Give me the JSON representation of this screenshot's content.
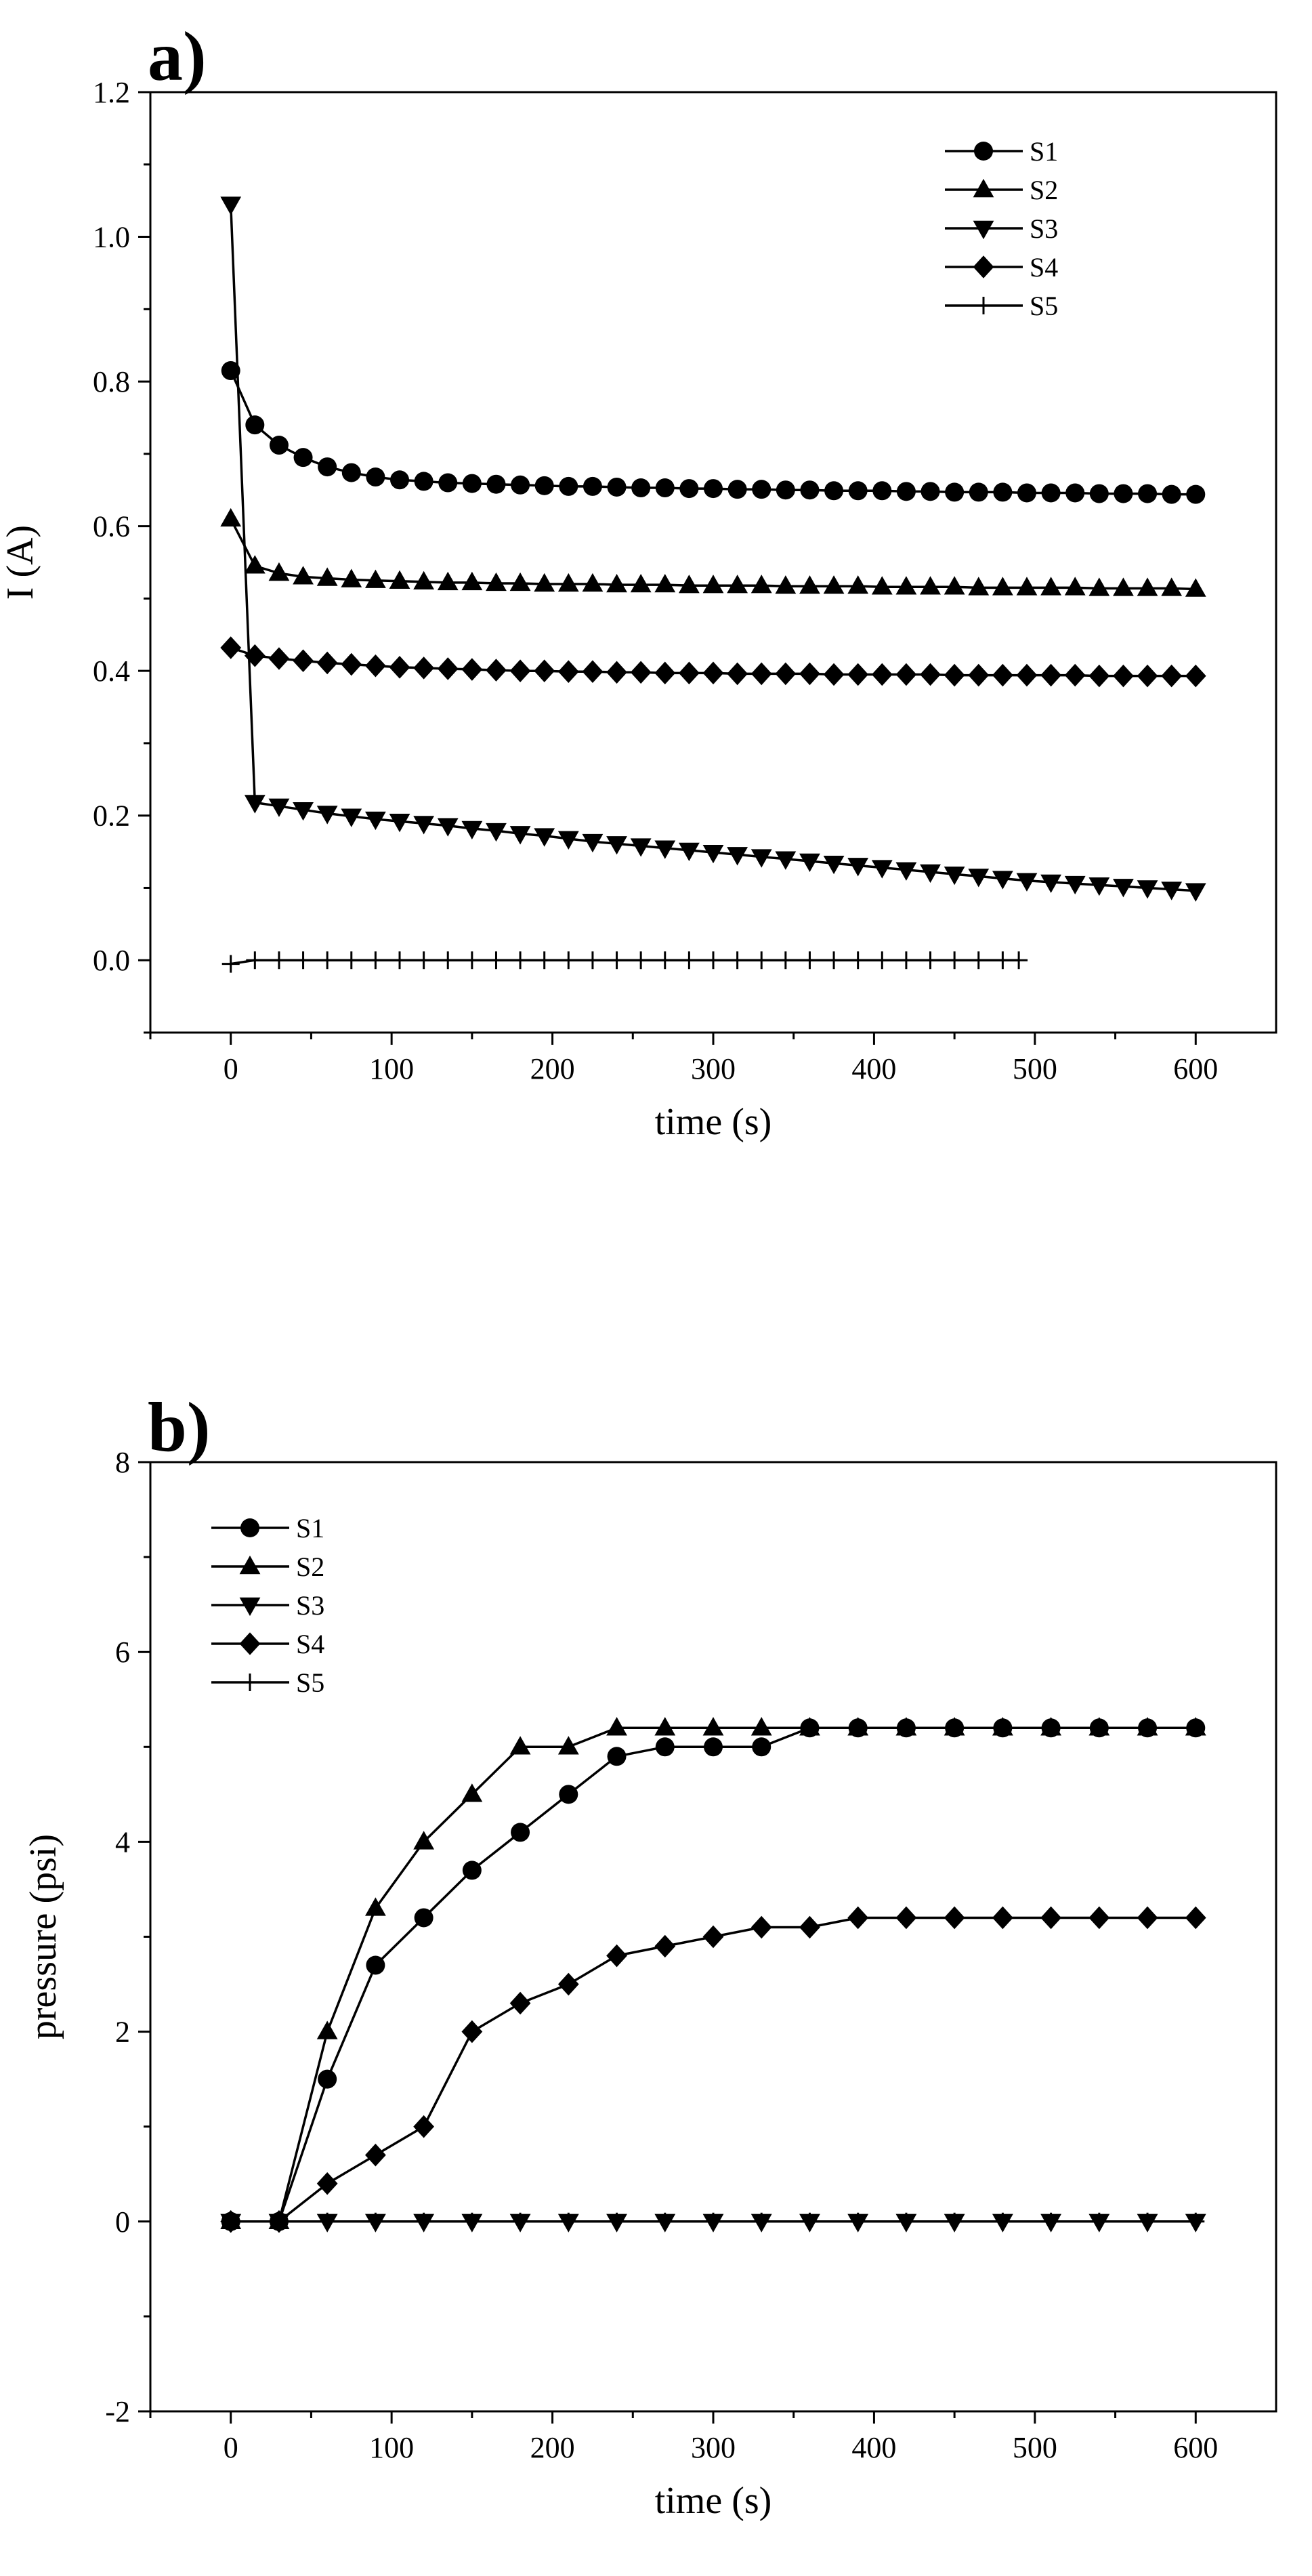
{
  "chart_data": [
    {
      "panel": "a)",
      "type": "line",
      "xlabel": "time (s)",
      "ylabel": "I (A)",
      "xlim": [
        -50,
        650
      ],
      "ylim": [
        -0.1,
        1.2
      ],
      "xticks": [
        0,
        100,
        200,
        300,
        400,
        500,
        600
      ],
      "yticks": [
        0.0,
        0.2,
        0.4,
        0.6,
        0.8,
        1.0,
        1.2
      ],
      "xtick_labels": [
        "0",
        "100",
        "200",
        "300",
        "400",
        "500",
        "600"
      ],
      "ytick_labels": [
        "0.0",
        "0.2",
        "0.4",
        "0.6",
        "0.8",
        "1.0",
        "1.2"
      ],
      "legend_position": "top-right",
      "series": [
        {
          "name": "S1",
          "marker": "circle",
          "x": [
            0,
            15,
            30,
            45,
            60,
            75,
            90,
            105,
            120,
            135,
            150,
            165,
            180,
            195,
            210,
            225,
            240,
            255,
            270,
            285,
            300,
            315,
            330,
            345,
            360,
            375,
            390,
            405,
            420,
            435,
            450,
            465,
            480,
            495,
            510,
            525,
            540,
            555,
            570,
            585,
            600
          ],
          "values": [
            0.815,
            0.74,
            0.712,
            0.695,
            0.682,
            0.674,
            0.668,
            0.664,
            0.662,
            0.66,
            0.659,
            0.658,
            0.657,
            0.656,
            0.655,
            0.655,
            0.654,
            0.653,
            0.653,
            0.652,
            0.652,
            0.651,
            0.651,
            0.65,
            0.65,
            0.649,
            0.649,
            0.649,
            0.648,
            0.648,
            0.647,
            0.647,
            0.647,
            0.646,
            0.646,
            0.646,
            0.645,
            0.645,
            0.645,
            0.644,
            0.644
          ]
        },
        {
          "name": "S2",
          "marker": "triangle-up",
          "x": [
            0,
            15,
            30,
            45,
            60,
            75,
            90,
            105,
            120,
            135,
            150,
            165,
            180,
            195,
            210,
            225,
            240,
            255,
            270,
            285,
            300,
            315,
            330,
            345,
            360,
            375,
            390,
            405,
            420,
            435,
            450,
            465,
            480,
            495,
            510,
            525,
            540,
            555,
            570,
            585,
            600
          ],
          "values": [
            0.61,
            0.545,
            0.535,
            0.53,
            0.528,
            0.526,
            0.525,
            0.524,
            0.523,
            0.522,
            0.522,
            0.521,
            0.521,
            0.52,
            0.52,
            0.52,
            0.519,
            0.519,
            0.519,
            0.518,
            0.518,
            0.518,
            0.518,
            0.517,
            0.517,
            0.517,
            0.517,
            0.516,
            0.516,
            0.516,
            0.516,
            0.515,
            0.515,
            0.515,
            0.515,
            0.515,
            0.514,
            0.514,
            0.514,
            0.514,
            0.513
          ]
        },
        {
          "name": "S3",
          "marker": "triangle-down",
          "x": [
            0,
            15,
            30,
            45,
            60,
            75,
            90,
            105,
            120,
            135,
            150,
            165,
            180,
            195,
            210,
            225,
            240,
            255,
            270,
            285,
            300,
            315,
            330,
            345,
            360,
            375,
            390,
            405,
            420,
            435,
            450,
            465,
            480,
            495,
            510,
            525,
            540,
            555,
            570,
            585,
            600
          ],
          "values": [
            1.045,
            0.218,
            0.213,
            0.208,
            0.203,
            0.199,
            0.195,
            0.192,
            0.189,
            0.186,
            0.182,
            0.179,
            0.175,
            0.172,
            0.168,
            0.164,
            0.161,
            0.158,
            0.155,
            0.152,
            0.149,
            0.146,
            0.143,
            0.14,
            0.137,
            0.134,
            0.131,
            0.128,
            0.125,
            0.122,
            0.119,
            0.116,
            0.113,
            0.11,
            0.108,
            0.106,
            0.104,
            0.102,
            0.1,
            0.098,
            0.096
          ]
        },
        {
          "name": "S4",
          "marker": "diamond",
          "x": [
            0,
            15,
            30,
            45,
            60,
            75,
            90,
            105,
            120,
            135,
            150,
            165,
            180,
            195,
            210,
            225,
            240,
            255,
            270,
            285,
            300,
            315,
            330,
            345,
            360,
            375,
            390,
            405,
            420,
            435,
            450,
            465,
            480,
            495,
            510,
            525,
            540,
            555,
            570,
            585,
            600
          ],
          "values": [
            0.432,
            0.421,
            0.417,
            0.414,
            0.411,
            0.409,
            0.407,
            0.405,
            0.404,
            0.403,
            0.402,
            0.401,
            0.4,
            0.4,
            0.399,
            0.399,
            0.398,
            0.398,
            0.397,
            0.397,
            0.397,
            0.396,
            0.396,
            0.396,
            0.396,
            0.395,
            0.395,
            0.395,
            0.395,
            0.395,
            0.394,
            0.394,
            0.394,
            0.394,
            0.394,
            0.394,
            0.393,
            0.393,
            0.393,
            0.393,
            0.393
          ]
        },
        {
          "name": "S5",
          "marker": "plus",
          "x": [
            0,
            15,
            30,
            45,
            60,
            75,
            90,
            105,
            120,
            135,
            150,
            165,
            180,
            195,
            210,
            225,
            240,
            255,
            270,
            285,
            300,
            315,
            330,
            345,
            360,
            375,
            390,
            405,
            420,
            435,
            450,
            465,
            480,
            490
          ],
          "values": [
            -0.005,
            0,
            0,
            0,
            0,
            0,
            0,
            0,
            0,
            0,
            0,
            0,
            0,
            0,
            0,
            0,
            0,
            0,
            0,
            0,
            0,
            0,
            0,
            0,
            0,
            0,
            0,
            0,
            0,
            0,
            0,
            0,
            0,
            0
          ]
        }
      ]
    },
    {
      "panel": "b)",
      "type": "line",
      "xlabel": "time (s)",
      "ylabel": "pressure (psi)",
      "xlim": [
        -50,
        650
      ],
      "ylim": [
        -2,
        8
      ],
      "xticks": [
        0,
        100,
        200,
        300,
        400,
        500,
        600
      ],
      "yticks": [
        -2,
        0,
        2,
        4,
        6,
        8
      ],
      "xtick_labels": [
        "0",
        "100",
        "200",
        "300",
        "400",
        "500",
        "600"
      ],
      "ytick_labels": [
        "-2",
        "0",
        "2",
        "4",
        "6",
        "8"
      ],
      "legend_position": "top-left",
      "series": [
        {
          "name": "S1",
          "marker": "circle",
          "x": [
            0,
            30,
            60,
            90,
            120,
            150,
            180,
            210,
            240,
            270,
            300,
            330,
            360,
            390,
            420,
            450,
            480,
            510,
            540,
            570,
            600
          ],
          "values": [
            0,
            0,
            1.5,
            2.7,
            3.2,
            3.7,
            4.1,
            4.5,
            4.9,
            5.0,
            5.0,
            5.0,
            5.2,
            5.2,
            5.2,
            5.2,
            5.2,
            5.2,
            5.2,
            5.2,
            5.2
          ]
        },
        {
          "name": "S2",
          "marker": "triangle-up",
          "x": [
            0,
            30,
            60,
            90,
            120,
            150,
            180,
            210,
            240,
            270,
            300,
            330,
            360,
            390,
            420,
            450,
            480,
            510,
            540,
            570,
            600
          ],
          "values": [
            0,
            0,
            2.0,
            3.3,
            4.0,
            4.5,
            5.0,
            5.0,
            5.2,
            5.2,
            5.2,
            5.2,
            5.2,
            5.2,
            5.2,
            5.2,
            5.2,
            5.2,
            5.2,
            5.2,
            5.2
          ]
        },
        {
          "name": "S3",
          "marker": "triangle-down",
          "x": [
            0,
            30,
            60,
            90,
            120,
            150,
            180,
            210,
            240,
            270,
            300,
            330,
            360,
            390,
            420,
            450,
            480,
            510,
            540,
            570,
            600
          ],
          "values": [
            0,
            0,
            0,
            0,
            0,
            0,
            0,
            0,
            0,
            0,
            0,
            0,
            0,
            0,
            0,
            0,
            0,
            0,
            0,
            0,
            0
          ]
        },
        {
          "name": "S4",
          "marker": "diamond",
          "x": [
            0,
            30,
            60,
            90,
            120,
            150,
            180,
            210,
            240,
            270,
            300,
            330,
            360,
            390,
            420,
            450,
            480,
            510,
            540,
            570,
            600
          ],
          "values": [
            0,
            0,
            0.4,
            0.7,
            1.0,
            2.0,
            2.3,
            2.5,
            2.8,
            2.9,
            3.0,
            3.1,
            3.1,
            3.2,
            3.2,
            3.2,
            3.2,
            3.2,
            3.2,
            3.2,
            3.2
          ]
        },
        {
          "name": "S5",
          "marker": "plus",
          "x": [
            0,
            30,
            60,
            90,
            120,
            150,
            180,
            210,
            240,
            270,
            300,
            330,
            360,
            390,
            420,
            450,
            480,
            510,
            540,
            570,
            600
          ],
          "values": [
            0,
            0,
            0,
            0,
            0,
            0,
            0,
            0,
            0,
            0,
            0,
            0,
            0,
            0,
            0,
            0,
            0,
            0,
            0,
            0,
            0
          ]
        }
      ]
    }
  ]
}
